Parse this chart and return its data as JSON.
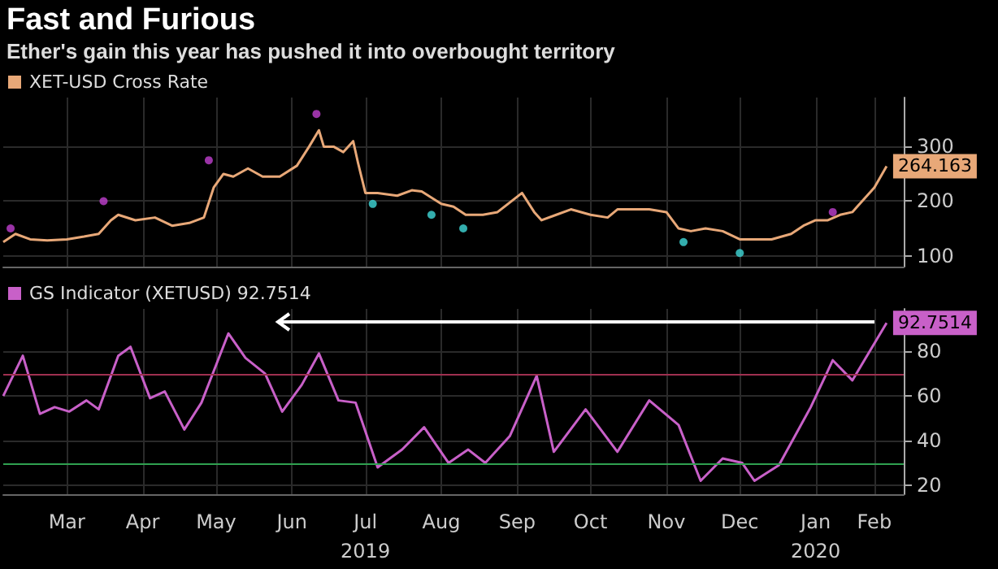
{
  "chart_data": [
    {
      "type": "line",
      "title": "Fast and Furious",
      "subtitle": "Ether's gain this year has pushed it into overbought territory",
      "xlim": [
        "2019-02-17",
        "2020-02-20"
      ],
      "xticks": [
        {
          "value": "2019-03-15",
          "label": null
        },
        {
          "value": "2019-04-15",
          "label": null
        },
        {
          "value": "2019-05-15",
          "label": null
        },
        {
          "value": "2019-06-15",
          "label": null
        },
        {
          "value": "2019-07-15",
          "label": null
        },
        {
          "value": "2019-08-15",
          "label": null
        },
        {
          "value": "2019-09-15",
          "label": null
        },
        {
          "value": "2019-10-15",
          "label": null
        },
        {
          "value": "2019-11-15",
          "label": null
        },
        {
          "value": "2019-12-15",
          "label": null
        },
        {
          "value": "2020-01-15",
          "label": null
        },
        {
          "value": "2020-02-08",
          "label": null
        }
      ],
      "ylim": [
        80,
        390
      ],
      "yticks": [
        100,
        200,
        300
      ],
      "grid": true,
      "legend": "top left",
      "tick_labels": "y",
      "line_style": "solid",
      "series": [
        {
          "name": "XET-USD Cross Rate",
          "color": "#e8a878",
          "marker": "none",
          "x": [
            "2019-02-17",
            "2019-02-22",
            "2019-02-28",
            "2019-03-07",
            "2019-03-15",
            "2019-03-22",
            "2019-03-28",
            "2019-04-02",
            "2019-04-05",
            "2019-04-12",
            "2019-04-20",
            "2019-04-27",
            "2019-05-04",
            "2019-05-10",
            "2019-05-14",
            "2019-05-18",
            "2019-05-22",
            "2019-05-28",
            "2019-06-03",
            "2019-06-10",
            "2019-06-17",
            "2019-06-22",
            "2019-06-26",
            "2019-06-28",
            "2019-07-02",
            "2019-07-06",
            "2019-07-10",
            "2019-07-12",
            "2019-07-15",
            "2019-07-20",
            "2019-07-28",
            "2019-08-03",
            "2019-08-07",
            "2019-08-15",
            "2019-08-20",
            "2019-08-25",
            "2019-09-01",
            "2019-09-07",
            "2019-09-17",
            "2019-09-22",
            "2019-09-25",
            "2019-10-01",
            "2019-10-07",
            "2019-10-15",
            "2019-10-22",
            "2019-10-26",
            "2019-11-01",
            "2019-11-08",
            "2019-11-15",
            "2019-11-20",
            "2019-11-25",
            "2019-12-01",
            "2019-12-08",
            "2019-12-15",
            "2019-12-22",
            "2019-12-28",
            "2020-01-05",
            "2020-01-10",
            "2020-01-15",
            "2020-01-20",
            "2020-01-25",
            "2020-01-30",
            "2020-02-03",
            "2020-02-08",
            "2020-02-13"
          ],
          "values": [
            125,
            140,
            130,
            128,
            130,
            135,
            140,
            165,
            175,
            165,
            170,
            155,
            160,
            170,
            225,
            250,
            245,
            260,
            245,
            245,
            265,
            300,
            330,
            300,
            300,
            290,
            310,
            270,
            215,
            215,
            210,
            220,
            218,
            195,
            190,
            175,
            175,
            180,
            215,
            180,
            165,
            175,
            185,
            175,
            170,
            185,
            185,
            185,
            180,
            150,
            145,
            150,
            145,
            130,
            130,
            130,
            140,
            155,
            165,
            165,
            175,
            180,
            200,
            225,
            264.163
          ],
          "value_labels": [
            null,
            null,
            null,
            null,
            null,
            null,
            null,
            null,
            null,
            null,
            null,
            null,
            null,
            null,
            null,
            null,
            null,
            null,
            null,
            null,
            null,
            null,
            null,
            null,
            null,
            null,
            null,
            null,
            null,
            null,
            null,
            null,
            null,
            null,
            null,
            null,
            null,
            null,
            null,
            null,
            null,
            null,
            null,
            null,
            null,
            null,
            null,
            null,
            null,
            null,
            null,
            null,
            null,
            null,
            null,
            null,
            null,
            null,
            null,
            null,
            null,
            null,
            null,
            null,
            "264.163"
          ]
        },
        {
          "type": "scatter",
          "color": "#c040d0",
          "marker": "circle",
          "x": [
            "2019-02-20",
            "2019-03-30",
            "2019-05-12",
            "2019-06-25",
            "2020-01-22"
          ],
          "values": [
            150,
            200,
            275,
            360,
            180
          ]
        },
        {
          "type": "scatter",
          "color": "#40d8d8",
          "marker": "circle",
          "x": [
            "2019-07-18",
            "2019-08-11",
            "2019-08-24",
            "2019-11-22",
            "2019-12-15"
          ],
          "values": [
            195,
            175,
            150,
            125,
            105
          ]
        }
      ]
    },
    {
      "type": "line",
      "xlim": [
        "2019-02-17",
        "2020-02-20"
      ],
      "xticks": [
        {
          "value": "2019-03-15",
          "label": "Mar"
        },
        {
          "value": "2019-04-15",
          "label": "Apr"
        },
        {
          "value": "2019-05-15",
          "label": "May"
        },
        {
          "value": "2019-06-15",
          "label": "Jun"
        },
        {
          "value": "2019-07-15",
          "label": "Jul\n2019"
        },
        {
          "value": "2019-08-15",
          "label": "Aug"
        },
        {
          "value": "2019-09-15",
          "label": "Sep"
        },
        {
          "value": "2019-10-15",
          "label": "Oct"
        },
        {
          "value": "2019-11-15",
          "label": "Nov"
        },
        {
          "value": "2019-12-15",
          "label": "Dec"
        },
        {
          "value": "2020-01-15",
          "label": "Jan\n2020"
        },
        {
          "value": "2020-02-08",
          "label": "Feb"
        }
      ],
      "ylim": [
        16,
        99
      ],
      "yticks": [
        20,
        40,
        60,
        80
      ],
      "grid": true,
      "legend": "top left",
      "marker": "none",
      "line_style": "solid",
      "ref_lines": [
        {
          "axis": "y",
          "value": 70,
          "label": null,
          "color": "#a03050"
        },
        {
          "axis": "y",
          "value": 30,
          "label": null,
          "color": "#30a050"
        }
      ],
      "series": [
        {
          "name": "GS Indicator (XETUSD) 92.7514",
          "color": "#c860c8",
          "x": [
            "2019-02-17",
            "2019-02-25",
            "2019-03-04",
            "2019-03-10",
            "2019-03-16",
            "2019-03-23",
            "2019-03-28",
            "2019-04-05",
            "2019-04-10",
            "2019-04-18",
            "2019-04-24",
            "2019-05-02",
            "2019-05-09",
            "2019-05-20",
            "2019-05-27",
            "2019-06-04",
            "2019-06-11",
            "2019-06-19",
            "2019-06-26",
            "2019-07-04",
            "2019-07-11",
            "2019-07-20",
            "2019-07-30",
            "2019-08-08",
            "2019-08-18",
            "2019-08-26",
            "2019-09-02",
            "2019-09-12",
            "2019-09-23",
            "2019-09-30",
            "2019-10-13",
            "2019-10-26",
            "2019-11-08",
            "2019-11-20",
            "2019-11-29",
            "2019-12-08",
            "2019-12-16",
            "2019-12-21",
            "2019-12-31",
            "2020-01-13",
            "2020-01-22",
            "2020-01-30",
            "2020-02-13"
          ],
          "values": [
            60,
            78,
            52,
            55,
            53,
            58,
            54,
            78,
            82,
            59,
            62,
            45,
            57,
            88,
            77,
            70,
            53,
            65,
            79,
            58,
            57,
            28,
            36,
            46,
            30,
            36,
            30,
            42,
            69,
            35,
            54,
            35,
            58,
            47,
            22,
            32,
            30,
            22,
            29,
            55,
            76,
            67,
            92.7514
          ],
          "value_labels": [
            null,
            null,
            null,
            null,
            null,
            null,
            null,
            null,
            null,
            null,
            null,
            null,
            null,
            null,
            null,
            null,
            null,
            null,
            null,
            null,
            null,
            null,
            null,
            null,
            null,
            null,
            null,
            null,
            null,
            null,
            null,
            null,
            null,
            null,
            null,
            null,
            null,
            null,
            null,
            null,
            null,
            null,
            "92.7514"
          ]
        }
      ]
    }
  ]
}
